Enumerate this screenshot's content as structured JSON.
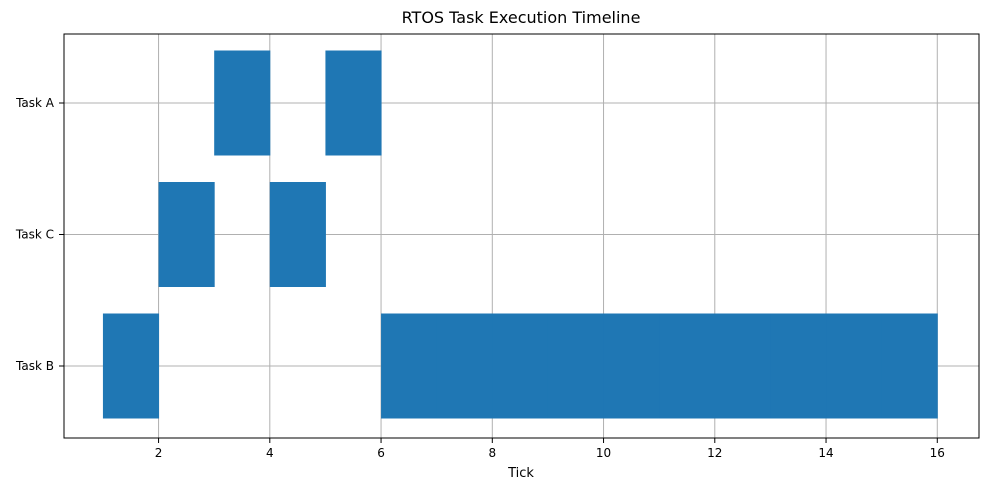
{
  "chart_data": {
    "type": "bar",
    "orientation": "horizontal",
    "title": "RTOS Task Execution Timeline",
    "xlabel": "Tick",
    "ylabel": "",
    "xlim": [
      0.3,
      16.75
    ],
    "xticks": [
      2,
      4,
      6,
      8,
      10,
      12,
      14,
      16
    ],
    "categories": [
      "Task B",
      "Task C",
      "Task A"
    ],
    "grid": true,
    "bar_color": "#1f77b4",
    "segments": [
      {
        "task": "Task B",
        "start": 1,
        "end": 2
      },
      {
        "task": "Task C",
        "start": 2,
        "end": 3
      },
      {
        "task": "Task A",
        "start": 3,
        "end": 4
      },
      {
        "task": "Task C",
        "start": 4,
        "end": 5
      },
      {
        "task": "Task A",
        "start": 5,
        "end": 6
      },
      {
        "task": "Task B",
        "start": 6,
        "end": 7
      },
      {
        "task": "Task B",
        "start": 7,
        "end": 8
      },
      {
        "task": "Task B",
        "start": 8,
        "end": 9
      },
      {
        "task": "Task B",
        "start": 9,
        "end": 10
      },
      {
        "task": "Task B",
        "start": 10,
        "end": 11
      },
      {
        "task": "Task B",
        "start": 11,
        "end": 12
      },
      {
        "task": "Task B",
        "start": 12,
        "end": 13
      },
      {
        "task": "Task B",
        "start": 13,
        "end": 14
      },
      {
        "task": "Task B",
        "start": 14,
        "end": 15
      },
      {
        "task": "Task B",
        "start": 15,
        "end": 16
      }
    ]
  }
}
